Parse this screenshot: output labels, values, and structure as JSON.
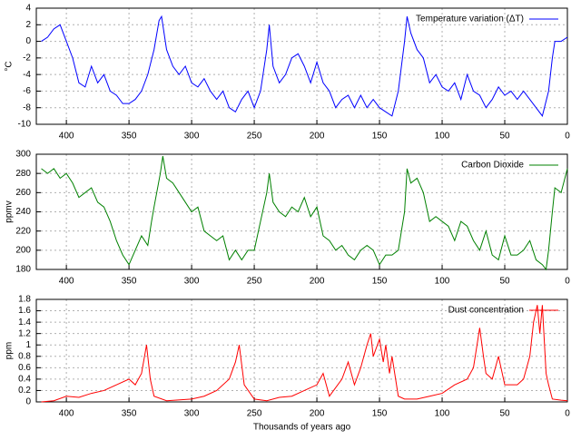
{
  "chart_data": [
    {
      "type": "line",
      "y_label": "°C",
      "legend": "upper right",
      "grid": true,
      "xlim": [
        424,
        0
      ],
      "xticks": [
        400,
        350,
        300,
        250,
        200,
        150,
        100,
        50,
        0
      ],
      "ylim": [
        -10,
        4
      ],
      "yticks": [
        -10,
        -8,
        -6,
        -4,
        -2,
        0,
        2,
        4
      ],
      "x": [
        420,
        415,
        410,
        405,
        400,
        395,
        390,
        385,
        380,
        375,
        370,
        365,
        360,
        355,
        350,
        345,
        340,
        335,
        330,
        326,
        324,
        320,
        315,
        310,
        305,
        300,
        295,
        290,
        285,
        280,
        275,
        270,
        265,
        260,
        255,
        250,
        245,
        240,
        238,
        235,
        230,
        225,
        220,
        215,
        210,
        205,
        200,
        195,
        190,
        185,
        180,
        175,
        170,
        165,
        160,
        155,
        150,
        145,
        140,
        135,
        130,
        128,
        125,
        120,
        115,
        110,
        105,
        100,
        95,
        90,
        85,
        80,
        75,
        70,
        65,
        60,
        55,
        50,
        45,
        40,
        35,
        30,
        25,
        20,
        15,
        12,
        10,
        5,
        0
      ],
      "series": [
        {
          "name": "Temperature variation (ΔT)",
          "color": "#0000ff",
          "values": [
            0,
            0.5,
            1.5,
            2,
            0,
            -2,
            -5,
            -5.5,
            -3,
            -5,
            -4,
            -6,
            -6.5,
            -7.5,
            -7.5,
            -7,
            -6,
            -4,
            -1,
            2.5,
            3,
            -1,
            -3,
            -4,
            -3,
            -5,
            -5.5,
            -4.5,
            -6,
            -7,
            -6,
            -8,
            -8.5,
            -7,
            -6,
            -8,
            -6,
            -1,
            2,
            -3,
            -5,
            -4,
            -2,
            -1.5,
            -3,
            -5,
            -2.5,
            -5,
            -6,
            -8,
            -7,
            -6.5,
            -8,
            -6.5,
            -8,
            -7,
            -8,
            -8.5,
            -9,
            -6,
            0,
            3,
            1,
            -1,
            -2,
            -5,
            -4,
            -5.5,
            -6,
            -5,
            -7,
            -4,
            -6,
            -6.5,
            -8,
            -7,
            -5.5,
            -6.5,
            -6,
            -7,
            -6,
            -7,
            -8,
            -9,
            -6,
            -2,
            0,
            0,
            0.5
          ]
        }
      ]
    },
    {
      "type": "line",
      "y_label": "ppmv",
      "legend": "upper right",
      "grid": true,
      "xlim": [
        424,
        0
      ],
      "xticks": [
        400,
        350,
        300,
        250,
        200,
        150,
        100,
        50,
        0
      ],
      "ylim": [
        180,
        300
      ],
      "yticks": [
        180,
        200,
        220,
        240,
        260,
        280,
        300
      ],
      "x": [
        420,
        415,
        410,
        405,
        400,
        395,
        390,
        385,
        380,
        375,
        370,
        365,
        360,
        355,
        350,
        345,
        340,
        335,
        332,
        330,
        325,
        323,
        320,
        315,
        310,
        305,
        300,
        295,
        290,
        285,
        280,
        275,
        270,
        265,
        260,
        255,
        250,
        245,
        240,
        238,
        235,
        230,
        225,
        220,
        215,
        210,
        205,
        200,
        195,
        190,
        185,
        180,
        175,
        170,
        165,
        160,
        155,
        150,
        145,
        140,
        135,
        130,
        128,
        125,
        120,
        115,
        110,
        105,
        100,
        95,
        90,
        85,
        80,
        75,
        70,
        65,
        60,
        55,
        50,
        45,
        40,
        35,
        30,
        25,
        20,
        17,
        15,
        12,
        10,
        5,
        0
      ],
      "series": [
        {
          "name": "Carbon Dioxide",
          "color": "#008000",
          "values": [
            285,
            280,
            285,
            275,
            280,
            270,
            255,
            260,
            265,
            250,
            245,
            230,
            210,
            195,
            185,
            200,
            215,
            205,
            230,
            245,
            280,
            298,
            275,
            270,
            260,
            250,
            240,
            245,
            220,
            215,
            210,
            215,
            190,
            200,
            190,
            200,
            200,
            230,
            260,
            280,
            250,
            240,
            235,
            245,
            240,
            255,
            235,
            245,
            215,
            210,
            200,
            205,
            195,
            190,
            200,
            205,
            200,
            185,
            195,
            195,
            200,
            240,
            285,
            270,
            275,
            260,
            230,
            235,
            230,
            225,
            210,
            230,
            225,
            210,
            200,
            220,
            195,
            190,
            215,
            195,
            195,
            200,
            210,
            190,
            185,
            180,
            200,
            240,
            265,
            260,
            285
          ]
        }
      ]
    },
    {
      "type": "line",
      "y_label": "ppm",
      "x_label": "Thousands of years ago",
      "legend": "upper right",
      "grid": true,
      "xlim": [
        424,
        0
      ],
      "xticks": [
        400,
        350,
        300,
        250,
        200,
        150,
        100,
        50,
        0
      ],
      "ylim": [
        0,
        1.8
      ],
      "yticks": [
        0,
        0.2,
        0.4,
        0.6,
        0.8,
        1,
        1.2,
        1.4,
        1.6,
        1.8
      ],
      "x": [
        420,
        410,
        400,
        390,
        380,
        370,
        360,
        350,
        345,
        340,
        336,
        333,
        330,
        320,
        300,
        290,
        280,
        270,
        265,
        262,
        258,
        250,
        240,
        230,
        220,
        210,
        200,
        195,
        190,
        180,
        175,
        170,
        165,
        160,
        157,
        155,
        150,
        147,
        145,
        142,
        140,
        135,
        130,
        120,
        110,
        100,
        90,
        80,
        75,
        70,
        67,
        65,
        60,
        55,
        50,
        40,
        35,
        30,
        27,
        24,
        22,
        20,
        17,
        15,
        12,
        5,
        0
      ],
      "series": [
        {
          "name": "Dust concentration",
          "color": "#ff0000",
          "values": [
            0,
            0.02,
            0.1,
            0.08,
            0.15,
            0.2,
            0.3,
            0.4,
            0.3,
            0.5,
            1.0,
            0.4,
            0.1,
            0.02,
            0.05,
            0.1,
            0.2,
            0.4,
            0.7,
            1.0,
            0.3,
            0.05,
            0.02,
            0.08,
            0.1,
            0.2,
            0.3,
            0.5,
            0.1,
            0.4,
            0.7,
            0.3,
            0.6,
            1.0,
            1.2,
            0.8,
            1.1,
            0.7,
            1.0,
            0.5,
            0.8,
            0.1,
            0.05,
            0.05,
            0.1,
            0.15,
            0.3,
            0.4,
            0.6,
            1.3,
            0.8,
            0.5,
            0.4,
            0.8,
            0.3,
            0.3,
            0.4,
            0.8,
            1.4,
            1.7,
            1.2,
            1.7,
            0.5,
            0.3,
            0.05,
            0.03,
            0.02
          ]
        }
      ]
    }
  ]
}
